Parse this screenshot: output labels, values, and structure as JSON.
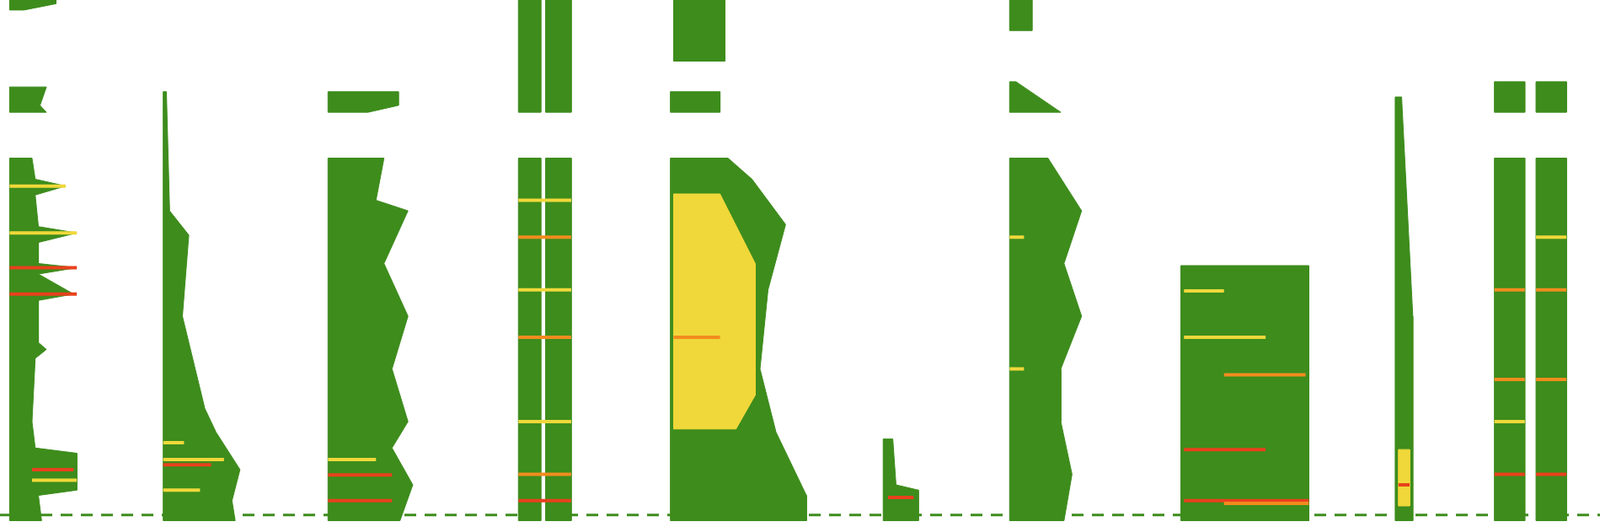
{
  "chart_data": {
    "type": "spectrogram",
    "xlim": [
      0,
      100
    ],
    "ylim": [
      0,
      100
    ],
    "tick_labels": false,
    "grid": false,
    "regions": [
      {
        "color": "#3d8c1c",
        "outline": [
          [
            0.6,
            1.2
          ],
          [
            0.6,
            70
          ],
          [
            2.0,
            70
          ],
          [
            2.2,
            66
          ],
          [
            4.1,
            64.7
          ],
          [
            2.2,
            63
          ],
          [
            2.4,
            57
          ],
          [
            4.8,
            55.8
          ],
          [
            2.4,
            54
          ],
          [
            2.4,
            50
          ],
          [
            4.8,
            49.2
          ],
          [
            2.4,
            48
          ],
          [
            4.6,
            44.2
          ],
          [
            2.4,
            43
          ],
          [
            2.4,
            35
          ],
          [
            2.9,
            33.7
          ],
          [
            2.2,
            32
          ],
          [
            2.0,
            20
          ],
          [
            2.2,
            15
          ],
          [
            4.8,
            14
          ],
          [
            4.8,
            7
          ],
          [
            2.4,
            6
          ],
          [
            2.6,
            1.2
          ]
        ]
      },
      {
        "color": "#3d8c1c",
        "outline": [
          [
            0.6,
            78.7
          ],
          [
            0.6,
            83.5
          ],
          [
            2.9,
            83.5
          ],
          [
            2.5,
            80
          ],
          [
            2.9,
            78.7
          ]
        ]
      },
      {
        "color": "#3d8c1c",
        "outline": [
          [
            0.6,
            98.1
          ],
          [
            0.6,
            100
          ],
          [
            3.5,
            100
          ],
          [
            3.5,
            99.3
          ],
          [
            1.5,
            98.1
          ]
        ]
      },
      {
        "color": "#3d8c1c",
        "outline": [
          [
            10.2,
            1.2
          ],
          [
            10.2,
            82.6
          ],
          [
            10.4,
            82.6
          ],
          [
            10.6,
            60
          ],
          [
            11.8,
            55.4
          ],
          [
            11.4,
            40
          ],
          [
            12.8,
            22.5
          ],
          [
            13.5,
            18
          ],
          [
            15.0,
            10.9
          ],
          [
            14.5,
            5
          ],
          [
            14.7,
            1.2
          ]
        ]
      },
      {
        "color": "#3d8c1c",
        "outline": [
          [
            20.5,
            1.2
          ],
          [
            20.5,
            70
          ],
          [
            24,
            70
          ],
          [
            23.5,
            62
          ],
          [
            25.5,
            60
          ],
          [
            24,
            50
          ],
          [
            25.5,
            40
          ],
          [
            24.5,
            30
          ],
          [
            25.5,
            20
          ],
          [
            24.5,
            15
          ],
          [
            25.8,
            8
          ],
          [
            25,
            1.2
          ]
        ]
      },
      {
        "color": "#3d8c1c",
        "outline": [
          [
            20.5,
            78.7
          ],
          [
            20.5,
            82.6
          ],
          [
            24.9,
            82.6
          ],
          [
            24.9,
            80
          ],
          [
            23,
            78.7
          ]
        ]
      },
      {
        "color": "#3d8c1c",
        "outline": [
          [
            32.4,
            1.2
          ],
          [
            32.4,
            70
          ],
          [
            33.8,
            70
          ],
          [
            33.8,
            1.2
          ]
        ]
      },
      {
        "color": "#3d8c1c",
        "outline": [
          [
            34.1,
            1.2
          ],
          [
            34.1,
            70
          ],
          [
            35.7,
            70
          ],
          [
            35.7,
            1.2
          ]
        ]
      },
      {
        "color": "#3d8c1c",
        "outline": [
          [
            32.4,
            78.7
          ],
          [
            32.4,
            100
          ],
          [
            33.8,
            100
          ],
          [
            33.8,
            78.7
          ]
        ]
      },
      {
        "color": "#3d8c1c",
        "outline": [
          [
            34.1,
            78.7
          ],
          [
            34.1,
            100
          ],
          [
            35.7,
            100
          ],
          [
            35.7,
            78.7
          ]
        ]
      },
      {
        "color": "#3d8c1c",
        "outline": [
          [
            41.9,
            1.2
          ],
          [
            41.9,
            70
          ],
          [
            45.5,
            70
          ],
          [
            47,
            66
          ],
          [
            49.1,
            57.4
          ],
          [
            48,
            45
          ],
          [
            47.5,
            30
          ],
          [
            48.5,
            18
          ],
          [
            50.4,
            6
          ],
          [
            50.4,
            1.2
          ]
        ]
      },
      {
        "color": "#3d8c1c",
        "outline": [
          [
            41.9,
            78.7
          ],
          [
            41.9,
            82.6
          ],
          [
            45.0,
            82.6
          ],
          [
            45.0,
            78.7
          ]
        ]
      },
      {
        "color": "#3d8c1c",
        "outline": [
          [
            42.1,
            88.4
          ],
          [
            42.1,
            100
          ],
          [
            45.3,
            100
          ],
          [
            45.3,
            88.4
          ]
        ]
      },
      {
        "color": "#f0d83a",
        "outline": [
          [
            42.1,
            18.6
          ],
          [
            42.1,
            63.2
          ],
          [
            45,
            63.2
          ],
          [
            47.2,
            50
          ],
          [
            47.2,
            25
          ],
          [
            46,
            18.6
          ]
        ]
      },
      {
        "color": "#3d8c1c",
        "outline": [
          [
            55.2,
            1.2
          ],
          [
            55.2,
            16.7
          ],
          [
            55.8,
            16.7
          ],
          [
            56,
            8
          ],
          [
            57.4,
            7
          ],
          [
            57.4,
            1.2
          ]
        ]
      },
      {
        "color": "#3d8c1c",
        "outline": [
          [
            63.1,
            1.2
          ],
          [
            63.1,
            70
          ],
          [
            65.5,
            70
          ],
          [
            67.6,
            60
          ],
          [
            66.5,
            50
          ],
          [
            67.6,
            40
          ],
          [
            66.3,
            30
          ],
          [
            66.3,
            20
          ],
          [
            67,
            10
          ],
          [
            66.5,
            1.2
          ]
        ]
      },
      {
        "color": "#3d8c1c",
        "outline": [
          [
            63.1,
            78.7
          ],
          [
            63.1,
            84.5
          ],
          [
            63.5,
            84.5
          ],
          [
            66.3,
            78.7
          ]
        ]
      },
      {
        "color": "#3d8c1c",
        "outline": [
          [
            63.1,
            94.2
          ],
          [
            63.1,
            100
          ],
          [
            64.5,
            100
          ],
          [
            64.5,
            94.2
          ]
        ]
      },
      {
        "color": "#3d8c1c",
        "outline": [
          [
            73.8,
            1.2
          ],
          [
            73.8,
            49.6
          ],
          [
            81.8,
            49.6
          ],
          [
            81.8,
            1.2
          ]
        ]
      },
      {
        "color": "#3d8c1c",
        "outline": [
          [
            87.2,
            1.2
          ],
          [
            87.2,
            81.6
          ],
          [
            87.6,
            81.6
          ],
          [
            88.3,
            40
          ],
          [
            88.3,
            1.2
          ]
        ]
      },
      {
        "color": "#f0d83a",
        "outline": [
          [
            87.4,
            4
          ],
          [
            87.4,
            14.7
          ],
          [
            88.1,
            14.7
          ],
          [
            88.1,
            4
          ]
        ]
      },
      {
        "color": "#3d8c1c",
        "outline": [
          [
            93.4,
            1.2
          ],
          [
            93.4,
            70
          ],
          [
            95.3,
            70
          ],
          [
            95.3,
            1.2
          ]
        ]
      },
      {
        "color": "#3d8c1c",
        "outline": [
          [
            96.0,
            1.2
          ],
          [
            96.0,
            70
          ],
          [
            97.9,
            70
          ],
          [
            97.9,
            1.2
          ]
        ]
      },
      {
        "color": "#3d8c1c",
        "outline": [
          [
            93.4,
            78.7
          ],
          [
            93.4,
            84.5
          ],
          [
            95.3,
            84.5
          ],
          [
            95.3,
            78.7
          ]
        ]
      },
      {
        "color": "#3d8c1c",
        "outline": [
          [
            96.0,
            78.7
          ],
          [
            96.0,
            84.5
          ],
          [
            97.9,
            84.5
          ],
          [
            97.9,
            78.7
          ]
        ]
      }
    ],
    "bands": [
      {
        "color": "#e8411c",
        "x": [
          0.6,
          4.8
        ],
        "y": 49.2
      },
      {
        "color": "#e8411c",
        "x": [
          0.6,
          4.8
        ],
        "y": 44.2
      },
      {
        "color": "#f0d83a",
        "x": [
          0.6,
          4.8
        ],
        "y": 55.8
      },
      {
        "color": "#f0d83a",
        "x": [
          0.6,
          4.1
        ],
        "y": 64.7
      },
      {
        "color": "#e8411c",
        "x": [
          2.0,
          4.6
        ],
        "y": 10.9
      },
      {
        "color": "#f0d83a",
        "x": [
          2.0,
          4.8
        ],
        "y": 8.9
      },
      {
        "color": "#f0d83a",
        "x": [
          10.2,
          14.0
        ],
        "y": 12.8
      },
      {
        "color": "#e8411c",
        "x": [
          10.2,
          13.2
        ],
        "y": 11.8
      },
      {
        "color": "#f0d83a",
        "x": [
          10.2,
          12.5
        ],
        "y": 7.0
      },
      {
        "color": "#f0d83a",
        "x": [
          10.2,
          11.5
        ],
        "y": 16
      },
      {
        "color": "#e8411c",
        "x": [
          20.5,
          24.5
        ],
        "y": 9.9
      },
      {
        "color": "#e8411c",
        "x": [
          20.5,
          24.5
        ],
        "y": 5.0
      },
      {
        "color": "#f0d83a",
        "x": [
          20.5,
          23.5
        ],
        "y": 12.8
      },
      {
        "color": "#f28c1e",
        "x": [
          32.4,
          35.7
        ],
        "y": 10
      },
      {
        "color": "#f0d83a",
        "x": [
          32.4,
          35.7
        ],
        "y": 20
      },
      {
        "color": "#f28c1e",
        "x": [
          32.4,
          35.7
        ],
        "y": 36
      },
      {
        "color": "#f0d83a",
        "x": [
          32.4,
          35.7
        ],
        "y": 45
      },
      {
        "color": "#f28c1e",
        "x": [
          32.4,
          35.7
        ],
        "y": 55
      },
      {
        "color": "#f0d83a",
        "x": [
          32.4,
          35.7
        ],
        "y": 62
      },
      {
        "color": "#e8411c",
        "x": [
          32.4,
          35.7
        ],
        "y": 5
      },
      {
        "color": "#f28c1e",
        "x": [
          42.1,
          45
        ],
        "y": 36
      },
      {
        "color": "#e8411c",
        "x": [
          55.5,
          57.1
        ],
        "y": 5.6
      },
      {
        "color": "#f0d83a",
        "x": [
          63.1,
          64
        ],
        "y": 30
      },
      {
        "color": "#f0d83a",
        "x": [
          63.1,
          64
        ],
        "y": 55
      },
      {
        "color": "#e8411c",
        "x": [
          74.0,
          81.8
        ],
        "y": 5.0
      },
      {
        "color": "#f28c1e",
        "x": [
          76.5,
          81.8
        ],
        "y": 4.5
      },
      {
        "color": "#e8411c",
        "x": [
          74.0,
          79.1
        ],
        "y": 14.7
      },
      {
        "color": "#f28c1e",
        "x": [
          76.5,
          81.6
        ],
        "y": 28.9
      },
      {
        "color": "#f0d83a",
        "x": [
          74.0,
          79.1
        ],
        "y": 36.0
      },
      {
        "color": "#f0d83a",
        "x": [
          74.0,
          76.5
        ],
        "y": 44.8
      },
      {
        "color": "#e8411c",
        "x": [
          87.4,
          88.1
        ],
        "y": 8
      },
      {
        "color": "#e8411c",
        "x": [
          93.4,
          95.3
        ],
        "y": 10
      },
      {
        "color": "#f28c1e",
        "x": [
          93.4,
          95.3
        ],
        "y": 28
      },
      {
        "color": "#f28c1e",
        "x": [
          93.4,
          95.3
        ],
        "y": 45
      },
      {
        "color": "#e8411c",
        "x": [
          96.0,
          97.9
        ],
        "y": 10
      },
      {
        "color": "#f28c1e",
        "x": [
          96.0,
          97.9
        ],
        "y": 28
      },
      {
        "color": "#f28c1e",
        "x": [
          96.0,
          97.9
        ],
        "y": 45
      },
      {
        "color": "#f0d83a",
        "x": [
          93.4,
          95.3
        ],
        "y": 20
      },
      {
        "color": "#f0d83a",
        "x": [
          96.0,
          97.9
        ],
        "y": 55
      }
    ],
    "baseline": {
      "y": 2.3,
      "color": "#3d8c1c",
      "line_style": "dashed"
    }
  }
}
